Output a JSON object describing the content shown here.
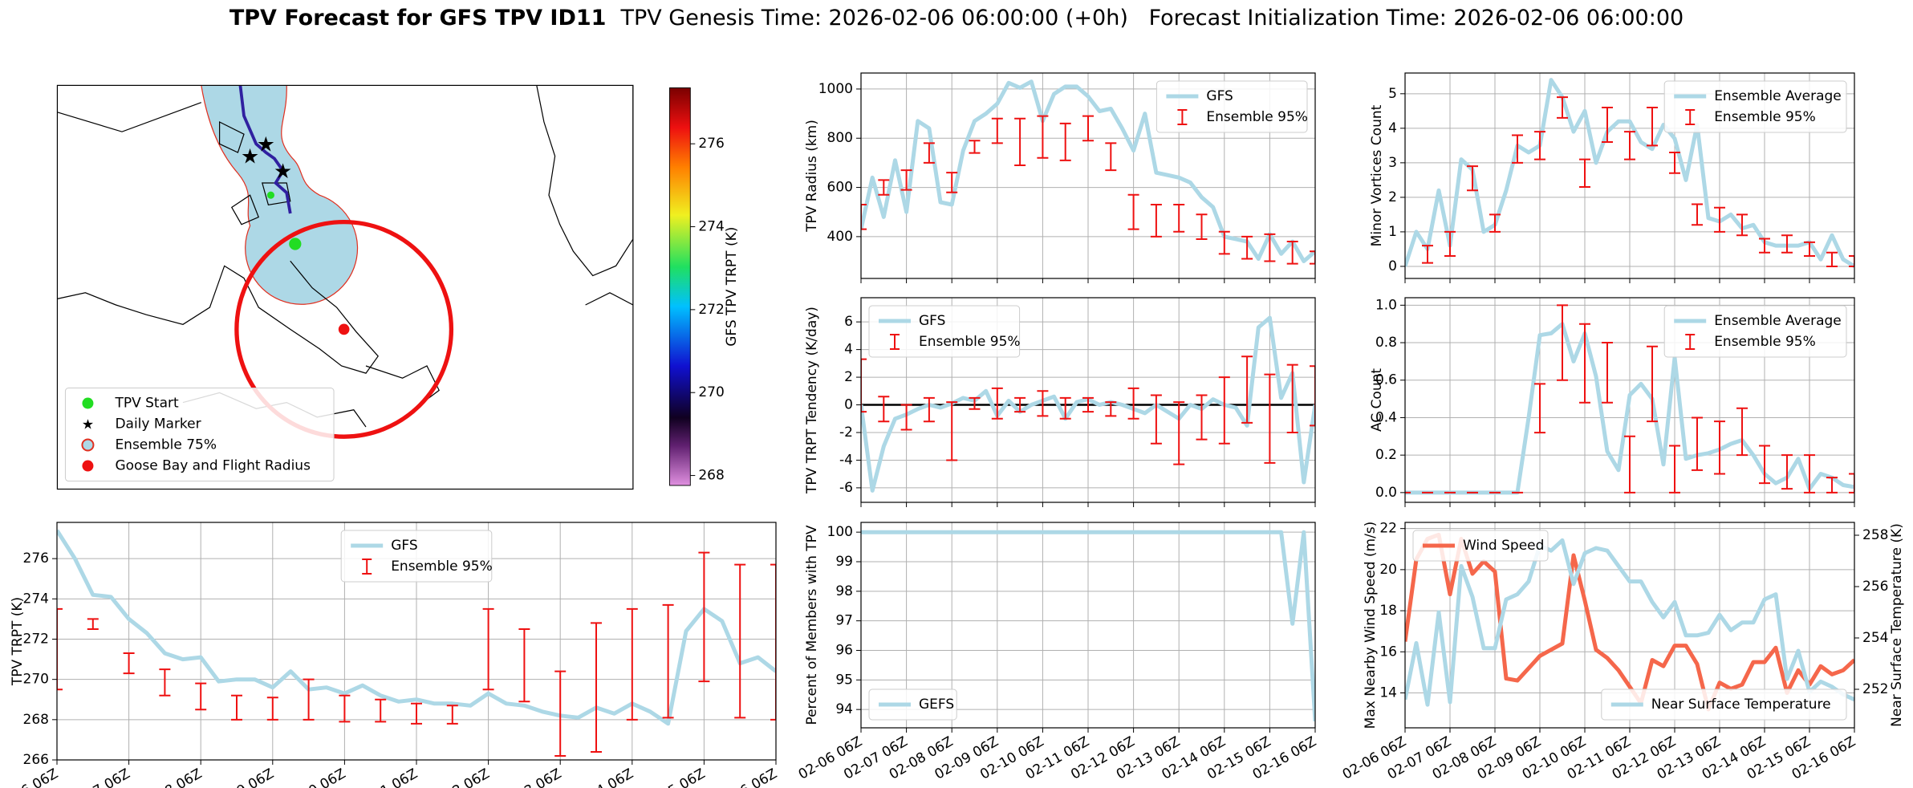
{
  "figure": {
    "title": "TPV Forecast for GFS TPV ID11",
    "subtitle": "TPV Genesis Time: 2026-02-06 06:00:00 (+0h)   Forecast Initialization Time: 2026-02-06 06:00:00"
  },
  "time_categories": [
    "02-06 06Z",
    null,
    null,
    null,
    "02-07 06Z",
    null,
    null,
    null,
    "02-08 06Z",
    null,
    null,
    null,
    "02-09 06Z",
    null,
    null,
    null,
    "02-10 06Z",
    null,
    null,
    null,
    "02-11 06Z",
    null,
    null,
    null,
    "02-12 06Z",
    null,
    null,
    null,
    "02-13 06Z",
    null,
    null,
    null,
    "02-14 06Z",
    null,
    null,
    null,
    "02-15 06Z",
    null,
    null,
    null,
    "02-16 06Z"
  ],
  "chart_data": [
    {
      "type": "map",
      "legend": "lower left",
      "series": [
        {
          "name": "TPV Start",
          "marker": "circle",
          "color": "#22dd22"
        },
        {
          "name": "Daily Marker",
          "marker": "star",
          "color": "#ff00ff"
        },
        {
          "name": "Ensemble 75%",
          "marker": "circle-outline",
          "color": "#add8e6",
          "edgecolor": "#e03020"
        },
        {
          "name": "Goose Bay and Flight Radius",
          "marker": "circle",
          "color": "#ee1111"
        }
      ],
      "colorbar": {
        "label": "GFS TPV TRPT (K)",
        "lim": [
          267.76,
          277.35
        ],
        "ticks": [
          268,
          270,
          272,
          274,
          276
        ]
      }
    },
    {
      "type": "line",
      "ylabel": "TPV TRPT (K)",
      "ylim": [
        266,
        277.8
      ],
      "yticks": [
        266,
        268,
        270,
        272,
        274,
        276
      ],
      "grid": true,
      "legend": "upper center",
      "series": [
        {
          "name": "GFS",
          "color": "#add8e6",
          "values": [
            277.4,
            276.0,
            274.2,
            274.1,
            273.0,
            272.3,
            271.3,
            271.0,
            271.1,
            269.9,
            270.0,
            270.0,
            269.6,
            270.4,
            269.5,
            269.6,
            269.3,
            269.7,
            269.2,
            268.9,
            269.0,
            268.8,
            268.8,
            268.7,
            269.3,
            268.8,
            268.7,
            268.4,
            268.2,
            268.1,
            268.6,
            268.3,
            268.8,
            268.4,
            267.8,
            272.4,
            273.5,
            272.9,
            270.8,
            271.1,
            270.4
          ]
        },
        {
          "name": "Ensemble 95%",
          "type": "errorbar",
          "color": "#ee1111",
          "low": [
            269.5,
            null,
            272.5,
            null,
            270.3,
            null,
            269.2,
            null,
            268.5,
            null,
            268,
            null,
            268,
            null,
            268,
            null,
            267.9,
            null,
            267.9,
            null,
            267.8,
            null,
            267.8,
            null,
            269.5,
            null,
            268.9,
            null,
            266.2,
            null,
            266.4,
            null,
            268,
            null,
            268.1,
            null,
            269.9,
            null,
            268.1,
            null,
            268
          ],
          "high": [
            273.5,
            null,
            273,
            null,
            271.3,
            null,
            270.5,
            null,
            269.8,
            null,
            269.2,
            null,
            269.1,
            null,
            270,
            null,
            269.2,
            null,
            269,
            null,
            268.8,
            null,
            268.7,
            null,
            273.5,
            null,
            272.5,
            null,
            270.4,
            null,
            272.8,
            null,
            273.5,
            null,
            273.7,
            null,
            276.3,
            null,
            275.7,
            null,
            275.7
          ]
        }
      ]
    },
    {
      "type": "line",
      "ylabel": "TPV Radius (km)",
      "ylim": [
        230,
        1065
      ],
      "yticks": [
        400,
        600,
        800,
        1000
      ],
      "grid": true,
      "legend": "upper right",
      "series": [
        {
          "name": "GFS",
          "color": "#add8e6",
          "values": [
            430,
            640,
            480,
            710,
            500,
            870,
            840,
            540,
            530,
            750,
            870,
            900,
            940,
            1025,
            1005,
            1030,
            870,
            980,
            1010,
            1010,
            970,
            910,
            920,
            840,
            750,
            900,
            660,
            650,
            640,
            620,
            560,
            520,
            400,
            390,
            380,
            310,
            410,
            330,
            380,
            300,
            340
          ]
        },
        {
          "name": "Ensemble 95%",
          "type": "errorbar",
          "color": "#ee1111",
          "low": [
            430,
            null,
            570,
            null,
            590,
            null,
            700,
            null,
            580,
            null,
            740,
            null,
            780,
            null,
            690,
            null,
            720,
            null,
            710,
            null,
            790,
            null,
            670,
            null,
            430,
            null,
            400,
            null,
            420,
            null,
            390,
            null,
            330,
            null,
            310,
            null,
            300,
            null,
            290,
            null,
            290
          ],
          "high": [
            530,
            null,
            630,
            null,
            670,
            null,
            780,
            null,
            660,
            null,
            790,
            null,
            880,
            null,
            880,
            null,
            890,
            null,
            860,
            null,
            890,
            null,
            780,
            null,
            570,
            null,
            530,
            null,
            530,
            null,
            490,
            null,
            420,
            null,
            400,
            null,
            410,
            null,
            380,
            null,
            340
          ]
        }
      ]
    },
    {
      "type": "line",
      "ylabel": "TPV TRPT Tendency (K/day)",
      "ylim": [
        -7.05,
        7.75
      ],
      "yticks": [
        -6,
        -4,
        -2,
        0,
        2,
        4,
        6
      ],
      "grid": true,
      "legend": "upper left",
      "reference_line": 0,
      "series": [
        {
          "name": "GFS",
          "color": "#add8e6",
          "values": [
            0,
            -6.2,
            -3,
            -1,
            -0.7,
            -0.3,
            0,
            -0.2,
            0.1,
            0.5,
            0.3,
            1,
            -0.8,
            0.3,
            -0.5,
            0,
            0.3,
            0.6,
            -1,
            0.2,
            0.4,
            0,
            0.2,
            0,
            -0.3,
            -0.6,
            0,
            -0.5,
            -1,
            0,
            -0.3,
            0.4,
            0,
            -0.2,
            -1.5,
            5.6,
            6.3,
            0.5,
            2.3,
            -5.6,
            0
          ]
        },
        {
          "name": "Ensemble 95%",
          "type": "errorbar",
          "color": "#ee1111",
          "low": [
            -0.5,
            null,
            -1.2,
            null,
            -1.8,
            null,
            -1.2,
            null,
            -4,
            null,
            -0.3,
            null,
            -1,
            null,
            -0.5,
            null,
            -0.8,
            null,
            -1,
            null,
            -0.5,
            null,
            -0.8,
            null,
            -1,
            null,
            -2.8,
            null,
            -4.3,
            null,
            -2.5,
            null,
            -2.8,
            null,
            -1.3,
            null,
            -4.2,
            null,
            -2,
            null,
            -1.5
          ],
          "high": [
            3.3,
            null,
            0.6,
            null,
            0,
            null,
            0.5,
            null,
            0.2,
            null,
            0.5,
            null,
            1.2,
            null,
            0.5,
            null,
            1,
            null,
            0.5,
            null,
            0.5,
            null,
            0.2,
            null,
            1.2,
            null,
            0.7,
            null,
            0.2,
            null,
            0.7,
            null,
            2,
            null,
            3.5,
            null,
            2.2,
            null,
            2.9,
            null,
            2.8
          ]
        }
      ]
    },
    {
      "type": "line",
      "ylabel": "Percent of Members with TPV",
      "ylim": [
        93.38,
        100.33
      ],
      "yticks": [
        94,
        95,
        96,
        97,
        98,
        99,
        100
      ],
      "grid": true,
      "legend": "lower left",
      "series": [
        {
          "name": "GEFS",
          "color": "#add8e6",
          "values": [
            100,
            100,
            100,
            100,
            100,
            100,
            100,
            100,
            100,
            100,
            100,
            100,
            100,
            100,
            100,
            100,
            100,
            100,
            100,
            100,
            100,
            100,
            100,
            100,
            100,
            100,
            100,
            100,
            100,
            100,
            100,
            100,
            100,
            100,
            100,
            100,
            100,
            100,
            96.9,
            100,
            93.6
          ]
        }
      ]
    },
    {
      "type": "line",
      "ylabel": "Minor Vortices Count",
      "ylim": [
        -0.35,
        5.6
      ],
      "yticks": [
        0,
        1,
        2,
        3,
        4,
        5
      ],
      "grid": true,
      "legend": "upper right",
      "series": [
        {
          "name": "Ensemble Average",
          "color": "#add8e6",
          "values": [
            0,
            1,
            0.5,
            2.2,
            0.6,
            3.1,
            2.8,
            1,
            1.2,
            2.2,
            3.5,
            3.3,
            3.5,
            5.4,
            4.9,
            3.9,
            4.5,
            3,
            3.9,
            4.2,
            4.2,
            3.6,
            3.4,
            4.1,
            3.7,
            2.5,
            4.1,
            1.4,
            1.3,
            1.5,
            1.1,
            1.2,
            0.7,
            0.6,
            0.6,
            0.6,
            0.7,
            0.2,
            0.9,
            0.2,
            0
          ]
        },
        {
          "name": "Ensemble 95%",
          "type": "errorbar",
          "color": "#ee1111",
          "low": [
            null,
            null,
            0.1,
            null,
            0.3,
            null,
            2.2,
            null,
            1,
            null,
            3,
            null,
            3.1,
            null,
            4.3,
            null,
            2.3,
            null,
            3.6,
            null,
            3.1,
            null,
            3.5,
            null,
            2.7,
            null,
            1.2,
            null,
            1,
            null,
            0.9,
            null,
            0.4,
            null,
            0.4,
            null,
            0.3,
            null,
            0,
            null,
            0
          ],
          "high": [
            null,
            null,
            0.6,
            null,
            1,
            null,
            2.9,
            null,
            1.5,
            null,
            3.8,
            null,
            3.9,
            null,
            4.9,
            null,
            3.1,
            null,
            4.6,
            null,
            3.9,
            null,
            4.6,
            null,
            3.3,
            null,
            1.8,
            null,
            1.7,
            null,
            1.5,
            null,
            0.8,
            null,
            0.9,
            null,
            0.7,
            null,
            0.4,
            null,
            0.3
          ]
        }
      ]
    },
    {
      "type": "line",
      "ylabel": "AC Count",
      "ylim": [
        -0.052,
        1.04
      ],
      "yticks": [
        {
          "value": 0,
          "label": "0.0"
        },
        0.2,
        0.4,
        0.6,
        0.8,
        {
          "value": 1,
          "label": "1.0"
        }
      ],
      "grid": true,
      "legend": "upper right",
      "series": [
        {
          "name": "Ensemble Average",
          "color": "#add8e6",
          "values": [
            0,
            0,
            0,
            0,
            0,
            0,
            0,
            0,
            0,
            0,
            0,
            0.4,
            0.84,
            0.85,
            0.9,
            0.7,
            0.85,
            0.62,
            0.22,
            0.12,
            0.52,
            0.58,
            0.5,
            0.15,
            0.72,
            0.18,
            0.2,
            0.21,
            0.23,
            0.26,
            0.28,
            0.2,
            0.1,
            0.05,
            0.08,
            0.18,
            0.02,
            0.1,
            0.08,
            0.04,
            0.03
          ]
        },
        {
          "name": "Ensemble 95%",
          "type": "errorbar",
          "color": "#ee1111",
          "low": [
            0,
            null,
            0,
            null,
            0,
            null,
            0,
            null,
            0,
            null,
            0,
            null,
            0.32,
            null,
            0.6,
            null,
            0.48,
            null,
            0.48,
            null,
            0,
            null,
            0.38,
            null,
            0,
            null,
            0.12,
            null,
            0.1,
            null,
            0.2,
            null,
            0.05,
            null,
            0.02,
            null,
            0,
            null,
            0,
            null,
            0
          ],
          "high": [
            0,
            null,
            0,
            null,
            0,
            null,
            0,
            null,
            0,
            null,
            0,
            null,
            0.58,
            null,
            1,
            null,
            0.9,
            null,
            0.8,
            null,
            0.3,
            null,
            0.78,
            null,
            0.25,
            null,
            0.4,
            null,
            0.38,
            null,
            0.45,
            null,
            0.25,
            null,
            0.2,
            null,
            0.2,
            null,
            0.08,
            null,
            0.1
          ]
        }
      ]
    },
    {
      "type": "line",
      "ylabel": "Max Nearby Wind Speed (m/s)",
      "y2label": "Near Surface Temperature (K)",
      "ylim": [
        12.3,
        22.3
      ],
      "yticks": [
        14,
        16,
        18,
        20,
        22
      ],
      "y2lim": [
        250.5,
        258.5
      ],
      "y2ticks": [
        252,
        254,
        256,
        258
      ],
      "grid": true,
      "legend": "upper left",
      "legend_y2": "lower right",
      "series": [
        {
          "name": "Wind Speed",
          "color": "#f5674b",
          "values": [
            16.5,
            20.5,
            21.5,
            21.7,
            18.8,
            21.5,
            19.8,
            20.4,
            19.9,
            14.7,
            14.6,
            15.2,
            15.8,
            16.1,
            16.4,
            20.7,
            18.5,
            16.1,
            15.7,
            15.1,
            14.3,
            13.5,
            15.6,
            15.3,
            16.3,
            16.3,
            15.4,
            13.2,
            14.5,
            14.2,
            14.4,
            15.5,
            15.5,
            16.2,
            14,
            15.1,
            14.4,
            15.3,
            14.9,
            15.1,
            15.6
          ]
        },
        {
          "name": "Near Surface Temperature",
          "color": "#add8e6",
          "axis": "y2",
          "values": [
            251.6,
            253.8,
            251.4,
            255,
            251.5,
            256.8,
            255.6,
            253.6,
            253.6,
            255.5,
            255.7,
            256.2,
            257.6,
            257.4,
            257.8,
            256.1,
            257.3,
            257.5,
            257.4,
            256.8,
            256.2,
            256.2,
            255.4,
            254.8,
            255.4,
            254.1,
            254.1,
            254.2,
            254.9,
            254.3,
            254.6,
            254.6,
            255.5,
            255.7,
            252.4,
            253.5,
            251.9,
            252.3,
            252.1,
            251.8,
            251.6
          ]
        }
      ],
      "y2color": "#4169e1"
    }
  ]
}
